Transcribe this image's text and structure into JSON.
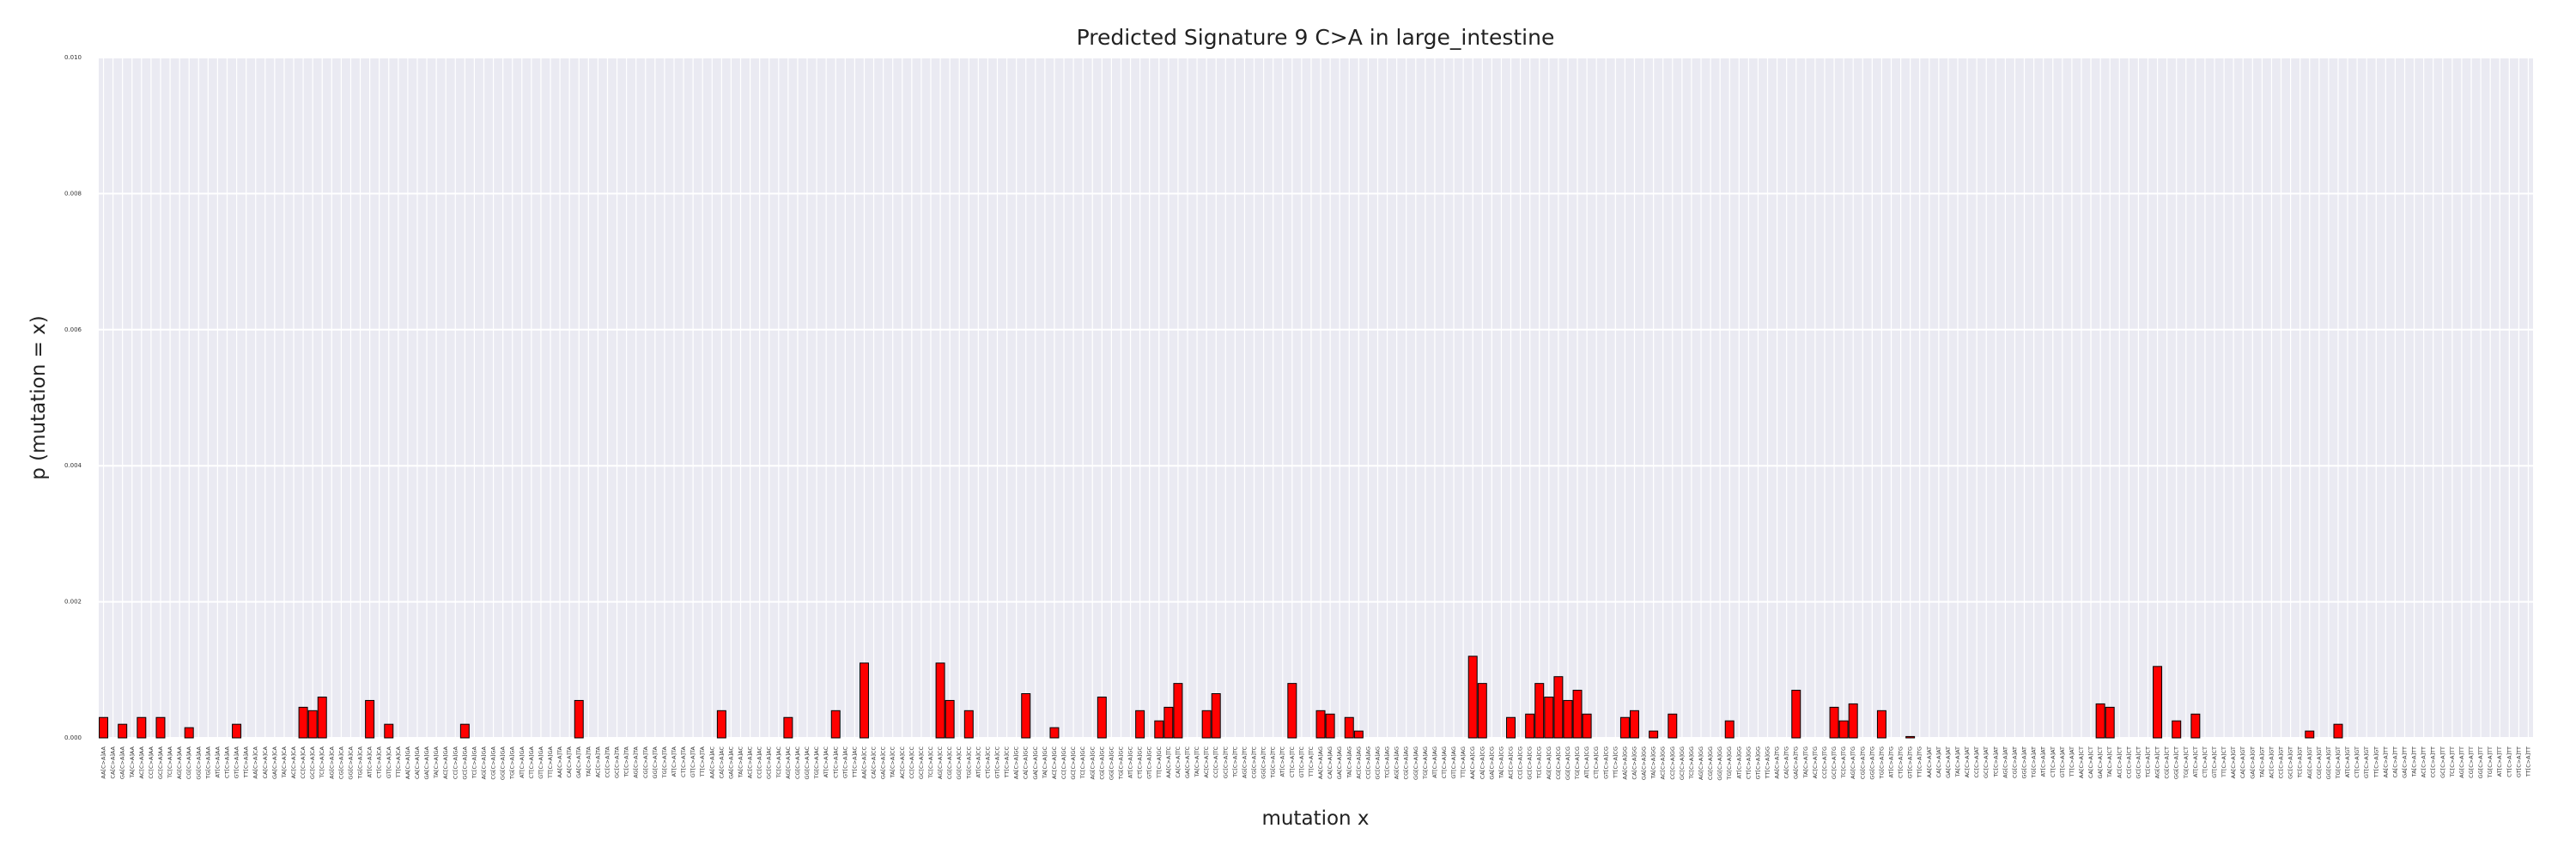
{
  "chart_data": {
    "type": "bar",
    "title": "Predicted Signature 9 C>A in large_intestine",
    "xlabel": "mutation x",
    "ylabel": "p (mutation = x)",
    "color": "#ff0000",
    "edgecolor": "#000000",
    "grid": true,
    "ylim": [
      0,
      0.01
    ],
    "yticks": [
      {
        "value": 0,
        "label": "0.000"
      },
      {
        "value": 0.002,
        "label": "0.002"
      },
      {
        "value": 0.004,
        "label": "0.004"
      },
      {
        "value": 0.006,
        "label": "0.006"
      },
      {
        "value": 0.008,
        "label": "0.008"
      },
      {
        "value": 0.01,
        "label": "0.010"
      }
    ],
    "categories": [
      "AA[C>A]AA",
      "CA[C>A]AA",
      "GA[C>A]AA",
      "TA[C>A]AA",
      "AC[C>A]AA",
      "CC[C>A]AA",
      "GC[C>A]AA",
      "TC[C>A]AA",
      "AG[C>A]AA",
      "CG[C>A]AA",
      "GG[C>A]AA",
      "TG[C>A]AA",
      "AT[C>A]AA",
      "CT[C>A]AA",
      "GT[C>A]AA",
      "TT[C>A]AA",
      "AA[C>A]CA",
      "CA[C>A]CA",
      "GA[C>A]CA",
      "TA[C>A]CA",
      "AC[C>A]CA",
      "CC[C>A]CA",
      "GC[C>A]CA",
      "TC[C>A]CA",
      "AG[C>A]CA",
      "CG[C>A]CA",
      "GG[C>A]CA",
      "TG[C>A]CA",
      "AT[C>A]CA",
      "CT[C>A]CA",
      "GT[C>A]CA",
      "TT[C>A]CA",
      "AA[C>A]GA",
      "CA[C>A]GA",
      "GA[C>A]GA",
      "TA[C>A]GA",
      "AC[C>A]GA",
      "CC[C>A]GA",
      "GC[C>A]GA",
      "TC[C>A]GA",
      "AG[C>A]GA",
      "CG[C>A]GA",
      "GG[C>A]GA",
      "TG[C>A]GA",
      "AT[C>A]GA",
      "CT[C>A]GA",
      "GT[C>A]GA",
      "TT[C>A]GA",
      "AA[C>A]TA",
      "CA[C>A]TA",
      "GA[C>A]TA",
      "TA[C>A]TA",
      "AC[C>A]TA",
      "CC[C>A]TA",
      "GC[C>A]TA",
      "TC[C>A]TA",
      "AG[C>A]TA",
      "CG[C>A]TA",
      "GG[C>A]TA",
      "TG[C>A]TA",
      "AT[C>A]TA",
      "CT[C>A]TA",
      "GT[C>A]TA",
      "TT[C>A]TA",
      "AA[C>A]AC",
      "CA[C>A]AC",
      "GA[C>A]AC",
      "TA[C>A]AC",
      "AC[C>A]AC",
      "CC[C>A]AC",
      "GC[C>A]AC",
      "TC[C>A]AC",
      "AG[C>A]AC",
      "CG[C>A]AC",
      "GG[C>A]AC",
      "TG[C>A]AC",
      "AT[C>A]AC",
      "CT[C>A]AC",
      "GT[C>A]AC",
      "TT[C>A]AC",
      "AA[C>A]CC",
      "CA[C>A]CC",
      "GA[C>A]CC",
      "TA[C>A]CC",
      "AC[C>A]CC",
      "CC[C>A]CC",
      "GC[C>A]CC",
      "TC[C>A]CC",
      "AG[C>A]CC",
      "CG[C>A]CC",
      "GG[C>A]CC",
      "TG[C>A]CC",
      "AT[C>A]CC",
      "CT[C>A]CC",
      "GT[C>A]CC",
      "TT[C>A]CC",
      "AA[C>A]GC",
      "CA[C>A]GC",
      "GA[C>A]GC",
      "TA[C>A]GC",
      "AC[C>A]GC",
      "CC[C>A]GC",
      "GC[C>A]GC",
      "TC[C>A]GC",
      "AG[C>A]GC",
      "CG[C>A]GC",
      "GG[C>A]GC",
      "TG[C>A]GC",
      "AT[C>A]GC",
      "CT[C>A]GC",
      "GT[C>A]GC",
      "TT[C>A]GC",
      "AA[C>A]TC",
      "CA[C>A]TC",
      "GA[C>A]TC",
      "TA[C>A]TC",
      "AC[C>A]TC",
      "CC[C>A]TC",
      "GC[C>A]TC",
      "TC[C>A]TC",
      "AG[C>A]TC",
      "CG[C>A]TC",
      "GG[C>A]TC",
      "TG[C>A]TC",
      "AT[C>A]TC",
      "CT[C>A]TC",
      "GT[C>A]TC",
      "TT[C>A]TC",
      "AA[C>A]AG",
      "CA[C>A]AG",
      "GA[C>A]AG",
      "TA[C>A]AG",
      "AC[C>A]AG",
      "CC[C>A]AG",
      "GC[C>A]AG",
      "TC[C>A]AG",
      "AG[C>A]AG",
      "CG[C>A]AG",
      "GG[C>A]AG",
      "TG[C>A]AG",
      "AT[C>A]AG",
      "CT[C>A]AG",
      "GT[C>A]AG",
      "TT[C>A]AG",
      "AA[C>A]CG",
      "CA[C>A]CG",
      "GA[C>A]CG",
      "TA[C>A]CG",
      "AC[C>A]CG",
      "CC[C>A]CG",
      "GC[C>A]CG",
      "TC[C>A]CG",
      "AG[C>A]CG",
      "CG[C>A]CG",
      "GG[C>A]CG",
      "TG[C>A]CG",
      "AT[C>A]CG",
      "CT[C>A]CG",
      "GT[C>A]CG",
      "TT[C>A]CG",
      "AA[C>A]GG",
      "CA[C>A]GG",
      "GA[C>A]GG",
      "TA[C>A]GG",
      "AC[C>A]GG",
      "CC[C>A]GG",
      "GC[C>A]GG",
      "TC[C>A]GG",
      "AG[C>A]GG",
      "CG[C>A]GG",
      "GG[C>A]GG",
      "TG[C>A]GG",
      "AT[C>A]GG",
      "CT[C>A]GG",
      "GT[C>A]GG",
      "TT[C>A]GG",
      "AA[C>A]TG",
      "CA[C>A]TG",
      "GA[C>A]TG",
      "TA[C>A]TG",
      "AC[C>A]TG",
      "CC[C>A]TG",
      "GC[C>A]TG",
      "TC[C>A]TG",
      "AG[C>A]TG",
      "CG[C>A]TG",
      "GG[C>A]TG",
      "TG[C>A]TG",
      "AT[C>A]TG",
      "CT[C>A]TG",
      "GT[C>A]TG",
      "TT[C>A]TG",
      "AA[C>A]AT",
      "CA[C>A]AT",
      "GA[C>A]AT",
      "TA[C>A]AT",
      "AC[C>A]AT",
      "CC[C>A]AT",
      "GC[C>A]AT",
      "TC[C>A]AT",
      "AG[C>A]AT",
      "CG[C>A]AT",
      "GG[C>A]AT",
      "TG[C>A]AT",
      "AT[C>A]AT",
      "CT[C>A]AT",
      "GT[C>A]AT",
      "TT[C>A]AT",
      "AA[C>A]CT",
      "CA[C>A]CT",
      "GA[C>A]CT",
      "TA[C>A]CT",
      "AC[C>A]CT",
      "CC[C>A]CT",
      "GC[C>A]CT",
      "TC[C>A]CT",
      "AG[C>A]CT",
      "CG[C>A]CT",
      "GG[C>A]CT",
      "TG[C>A]CT",
      "AT[C>A]CT",
      "CT[C>A]CT",
      "GT[C>A]CT",
      "TT[C>A]CT",
      "AA[C>A]GT",
      "CA[C>A]GT",
      "GA[C>A]GT",
      "TA[C>A]GT",
      "AC[C>A]GT",
      "CC[C>A]GT",
      "GC[C>A]GT",
      "TC[C>A]GT",
      "AG[C>A]GT",
      "CG[C>A]GT",
      "GG[C>A]GT",
      "TG[C>A]GT",
      "AT[C>A]GT",
      "CT[C>A]GT",
      "GT[C>A]GT",
      "TT[C>A]GT",
      "AA[C>A]TT",
      "CA[C>A]TT",
      "GA[C>A]TT",
      "TA[C>A]TT",
      "AC[C>A]TT",
      "CC[C>A]TT",
      "GC[C>A]TT",
      "TC[C>A]TT",
      "AG[C>A]TT",
      "CG[C>A]TT",
      "GG[C>A]TT",
      "TG[C>A]TT",
      "AT[C>A]TT",
      "CT[C>A]TT",
      "GT[C>A]TT",
      "TT[C>A]TT"
    ],
    "values": [
      0.0003,
      0,
      0.0002,
      0,
      0.0003,
      0,
      0.0003,
      0,
      0,
      0.00015,
      0,
      0,
      0,
      0,
      0.0002,
      0,
      0,
      0,
      0,
      0,
      0,
      0.00045,
      0.0004,
      0.0006,
      0,
      0,
      0,
      0,
      0.00055,
      0,
      0.0002,
      0,
      0,
      0,
      0,
      0,
      0,
      0,
      0.0002,
      0,
      0,
      0,
      0,
      0,
      0,
      0,
      0,
      0,
      0,
      0,
      0.00055,
      0,
      0,
      0,
      0,
      0,
      0,
      0,
      0,
      0,
      0,
      0,
      0,
      0,
      0,
      0.0004,
      0,
      0,
      0,
      0,
      0,
      0,
      0.0003,
      0,
      0,
      0,
      0,
      0.0004,
      0,
      0,
      0.0011,
      0,
      0,
      0,
      0,
      0,
      0,
      0,
      0.0011,
      0.00055,
      0,
      0.0004,
      0,
      0,
      0,
      0,
      0,
      0.00065,
      0,
      0,
      0.00015,
      0,
      0,
      0,
      0,
      0.0006,
      0,
      0,
      0,
      0.0004,
      0,
      0.00025,
      0.00045,
      0.0008,
      0,
      0,
      0.0004,
      0.00065,
      0,
      0,
      0,
      0,
      0,
      0,
      0,
      0.0008,
      0,
      0,
      0.0004,
      0.00035,
      0,
      0.0003,
      0.0001,
      0,
      0,
      0,
      0,
      0,
      0,
      0,
      0,
      0,
      0,
      0,
      0.0012,
      0.0008,
      0,
      0,
      0.0003,
      0,
      0.00035,
      0.0008,
      0.0006,
      0.0009,
      0.00055,
      0.0007,
      0.00035,
      0,
      0,
      0,
      0.0003,
      0.0004,
      0,
      0.0001,
      0,
      0.00035,
      0,
      0,
      0,
      0,
      0,
      0.00025,
      0,
      0,
      0,
      0,
      0,
      0,
      0.0007,
      0,
      0,
      0,
      0.00045,
      0.00025,
      0.0005,
      0,
      0,
      0.0004,
      0,
      0,
      2e-05,
      0,
      0,
      0,
      0,
      0,
      0,
      0,
      0,
      0,
      0,
      0,
      0,
      0,
      0,
      0,
      0,
      0,
      0,
      0,
      0.0005,
      0.00045,
      0,
      0,
      0,
      0,
      0.00105,
      0,
      0.00025,
      0,
      0.00035,
      0,
      0,
      0,
      0,
      0,
      0,
      0,
      0,
      0,
      0,
      0,
      0.0001,
      0,
      0,
      0.0002,
      0,
      0,
      0,
      0,
      0,
      0,
      0,
      0,
      0,
      0,
      0,
      0,
      0,
      0,
      0,
      0,
      0,
      0,
      0,
      0
    ]
  }
}
